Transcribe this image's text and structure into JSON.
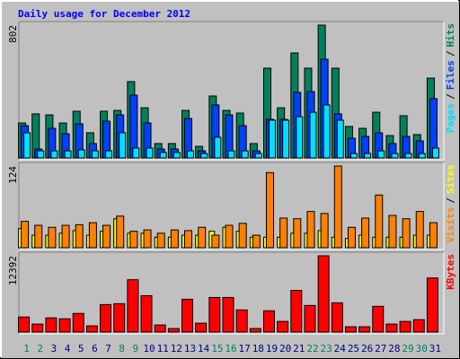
{
  "title": "Daily usage for December 2012",
  "legend_separator": "/",
  "categories": [
    "1",
    "2",
    "3",
    "4",
    "5",
    "6",
    "7",
    "8",
    "9",
    "10",
    "11",
    "12",
    "13",
    "14",
    "15",
    "16",
    "17",
    "18",
    "19",
    "20",
    "21",
    "22",
    "23",
    "24",
    "25",
    "26",
    "27",
    "28",
    "29",
    "30",
    "31"
  ],
  "category_colors": [
    "#00805c",
    "#00805c",
    "#000080",
    "#000080",
    "#000080",
    "#000080",
    "#000080",
    "#00805c",
    "#00805c",
    "#000080",
    "#000080",
    "#000080",
    "#000080",
    "#000080",
    "#00805c",
    "#00805c",
    "#000080",
    "#000080",
    "#000080",
    "#000080",
    "#000080",
    "#00805c",
    "#00805c",
    "#000080",
    "#000080",
    "#000080",
    "#000080",
    "#000080",
    "#00805c",
    "#00805c",
    "#000080"
  ],
  "chart_data": [
    {
      "type": "bar",
      "ylim": [
        0,
        802
      ],
      "yticks": [
        802
      ],
      "series": [
        {
          "name": "Hits",
          "color": "#00805c",
          "values": [
            211,
            266,
            260,
            211,
            282,
            152,
            282,
            287,
            461,
            303,
            87,
            87,
            287,
            70,
            374,
            287,
            271,
            87,
            542,
            303,
            634,
            542,
            802,
            542,
            190,
            179,
            276,
            135,
            255,
            141,
            482
          ]
        },
        {
          "name": "Files",
          "color": "#0040ff",
          "values": [
            195,
            54,
            179,
            146,
            206,
            87,
            222,
            260,
            379,
            211,
            54,
            54,
            238,
            43,
            320,
            260,
            195,
            43,
            233,
            233,
            396,
            401,
            596,
            266,
            119,
            130,
            152,
            87,
            130,
            103,
            358
          ]
        },
        {
          "name": "Pages",
          "color": "#00e0ff",
          "values": [
            152,
            43,
            43,
            43,
            49,
            43,
            43,
            152,
            60,
            60,
            33,
            33,
            43,
            27,
            125,
            43,
            43,
            27,
            228,
            228,
            249,
            276,
            320,
            228,
            27,
            27,
            43,
            27,
            27,
            27,
            60
          ]
        }
      ]
    },
    {
      "type": "bar",
      "ylim": [
        0,
        124
      ],
      "yticks": [
        124
      ],
      "series": [
        {
          "name": "Sites",
          "color": "#ffff00",
          "values": [
            29,
            19,
            19,
            22,
            26,
            19,
            25,
            44,
            22,
            22,
            16,
            16,
            19,
            19,
            25,
            31,
            25,
            16,
            16,
            16,
            22,
            22,
            26,
            16,
            14,
            19,
            16,
            16,
            16,
            19,
            19
          ]
        },
        {
          "name": "Visits",
          "color": "#ff8000",
          "values": [
            40,
            34,
            31,
            34,
            35,
            38,
            34,
            48,
            25,
            27,
            22,
            27,
            26,
            31,
            19,
            34,
            37,
            19,
            114,
            45,
            44,
            55,
            52,
            124,
            31,
            45,
            80,
            49,
            44,
            55,
            38
          ]
        }
      ]
    },
    {
      "type": "bar",
      "ylim": [
        0,
        12392
      ],
      "yticks": [
        12392
      ],
      "series": [
        {
          "name": "KBytes",
          "color": "#ff0000",
          "values": [
            2450,
            1297,
            2306,
            2161,
            3026,
            1009,
            4467,
            4611,
            8502,
            5908,
            1153,
            576,
            5331,
            1441,
            5620,
            5620,
            3602,
            576,
            3458,
            1729,
            6772,
            4323,
            12392,
            4755,
            865,
            865,
            4179,
            1297,
            1729,
            2017,
            8790
          ]
        }
      ]
    }
  ]
}
